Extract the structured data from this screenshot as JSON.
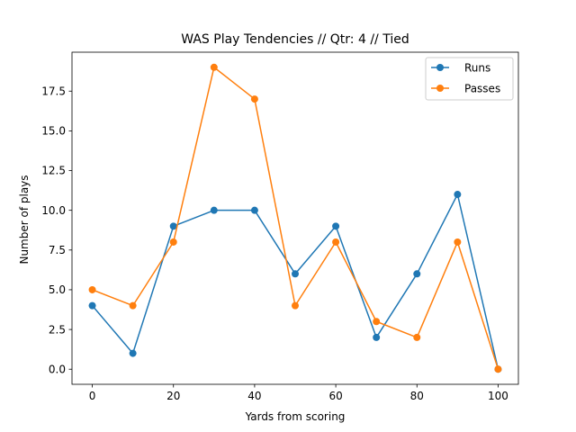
{
  "chart_data": {
    "type": "line",
    "title": "WAS Play Tendencies // Qtr: 4 // Tied",
    "xlabel": "Yards from scoring",
    "ylabel": "Number of plays",
    "x": [
      0,
      10,
      20,
      30,
      40,
      50,
      60,
      70,
      80,
      90,
      100
    ],
    "xlim": [
      -5,
      105
    ],
    "ylim": [
      -0.95,
      19.95
    ],
    "xticks": [
      0,
      20,
      40,
      60,
      80,
      100
    ],
    "yticks": [
      0.0,
      2.5,
      5.0,
      7.5,
      10.0,
      12.5,
      15.0,
      17.5
    ],
    "xtick_labels": [
      "0",
      "20",
      "40",
      "60",
      "80",
      "100"
    ],
    "ytick_labels": [
      "0.0",
      "2.5",
      "5.0",
      "7.5",
      "10.0",
      "12.5",
      "15.0",
      "17.5"
    ],
    "grid": false,
    "legend_position": "top-right",
    "series": [
      {
        "name": "Runs",
        "color": "#1f77b4",
        "values": [
          4,
          1,
          9,
          10,
          10,
          6,
          9,
          2,
          6,
          11,
          0
        ]
      },
      {
        "name": "Passes",
        "color": "#ff7f0e",
        "values": [
          5,
          4,
          8,
          19,
          17,
          4,
          8,
          3,
          2,
          8,
          0
        ]
      }
    ]
  }
}
